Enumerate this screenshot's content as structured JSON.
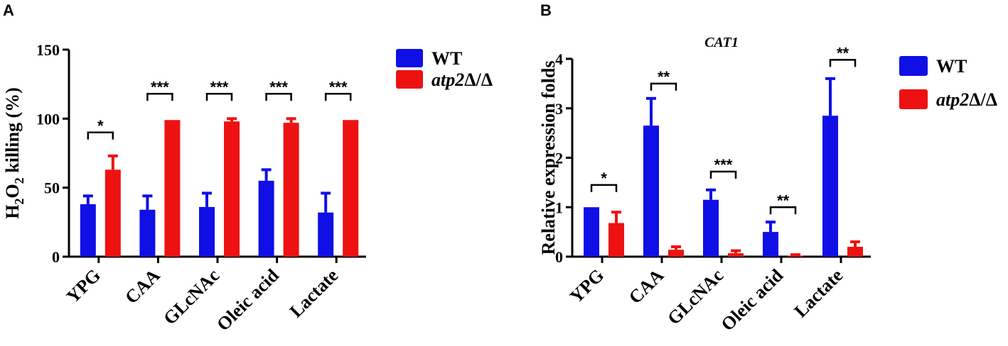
{
  "chart_data": [
    {
      "panel": "A",
      "type": "bar",
      "title": "",
      "ylabel": "H2O2 killing (%)",
      "ylabel_parts": {
        "base": "H",
        "sub1": "2",
        "mid": "O",
        "sub2": "2",
        "rest": " killing (%)"
      },
      "ylim": [
        0,
        150
      ],
      "yticks": [
        0,
        50,
        100,
        150
      ],
      "categories": [
        "YPG",
        "CAA",
        "GLcNAc",
        "Oleic acid",
        "Lactate"
      ],
      "series": [
        {
          "name": "WT",
          "color": "#0f0fe6",
          "values": [
            38,
            34,
            36,
            55,
            32
          ],
          "errors": [
            6,
            10,
            10,
            8,
            14
          ]
        },
        {
          "name": "atp2Δ/Δ",
          "name_italic": "atp2",
          "name_rest": "Δ/Δ",
          "color": "#ee1111",
          "values": [
            63,
            99,
            98,
            97,
            99
          ],
          "errors": [
            10,
            0,
            2,
            3,
            0
          ]
        }
      ],
      "significance": [
        "*",
        "***",
        "***",
        "***",
        "***"
      ],
      "sig_heights": [
        90,
        118,
        118,
        118,
        118
      ]
    },
    {
      "panel": "B",
      "type": "bar",
      "title": "CAT1",
      "ylabel": "Relative expression folds",
      "ylim": [
        0,
        4
      ],
      "yticks": [
        0,
        1,
        2,
        3,
        4
      ],
      "categories": [
        "YPG",
        "CAA",
        "GLcNAc",
        "Oleic acid",
        "Lactate"
      ],
      "series": [
        {
          "name": "WT",
          "color": "#0f0fe6",
          "values": [
            1.0,
            2.65,
            1.15,
            0.5,
            2.85
          ],
          "errors": [
            0,
            0.55,
            0.2,
            0.2,
            0.75
          ]
        },
        {
          "name": "atp2Δ/Δ",
          "name_italic": "atp2",
          "name_rest": "Δ/Δ",
          "color": "#ee1111",
          "values": [
            0.68,
            0.14,
            0.07,
            0.02,
            0.2
          ],
          "errors": [
            0.22,
            0.06,
            0.05,
            0.02,
            0.1
          ]
        }
      ],
      "significance": [
        "*",
        "**",
        "***",
        "**",
        "**"
      ],
      "sig_heights": [
        1.45,
        3.5,
        1.72,
        1.0,
        3.98
      ]
    }
  ]
}
